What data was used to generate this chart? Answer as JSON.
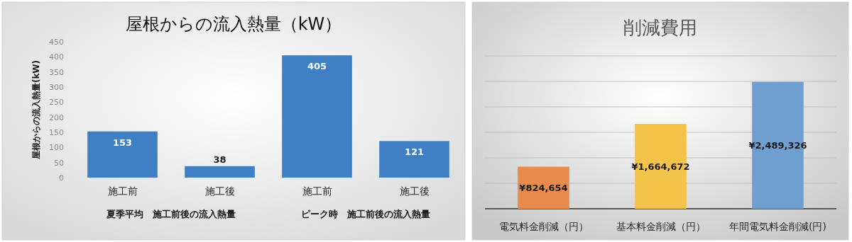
{
  "chart_data": [
    {
      "type": "bar",
      "title": "屋根からの流入熱量（kW）",
      "ylabel": "屋根からの流入熱量(kW)",
      "categories": [
        "施工前",
        "施工後",
        "施工前",
        "施工後"
      ],
      "values": [
        153,
        38,
        405,
        121
      ],
      "color": "#3f80c4",
      "ylim": [
        0,
        450
      ],
      "yticks": [
        0,
        50,
        100,
        150,
        200,
        250,
        300,
        350,
        400,
        450
      ],
      "data_labels": true,
      "annotations": [
        "夏季平均　施工前後の流入熱量",
        "ピーク時　施工前後の流入熱量"
      ]
    },
    {
      "type": "bar",
      "title": "削減費用",
      "categories": [
        "電気料金削減（円）",
        "基本料金削減（円）",
        "年間電気料金削減(円)"
      ],
      "values": [
        824654,
        1664672,
        2489326
      ],
      "colors": [
        "#e88b4d",
        "#f5c24a",
        "#6f9fd1"
      ],
      "value_labels": [
        "¥824,654",
        "¥1,664,672",
        "¥2,489,326"
      ],
      "ylim": [
        0,
        3000000
      ],
      "yticks": [
        {
          "value": 0,
          "label": null
        },
        {
          "value": 500000,
          "label": null
        },
        {
          "value": 1000000,
          "label": null
        },
        {
          "value": 1500000,
          "label": null
        },
        {
          "value": 2000000,
          "label": null
        },
        {
          "value": 2500000,
          "label": null
        },
        {
          "value": 3000000,
          "label": null
        }
      ],
      "grid": "y",
      "tick_labels": "x"
    }
  ]
}
